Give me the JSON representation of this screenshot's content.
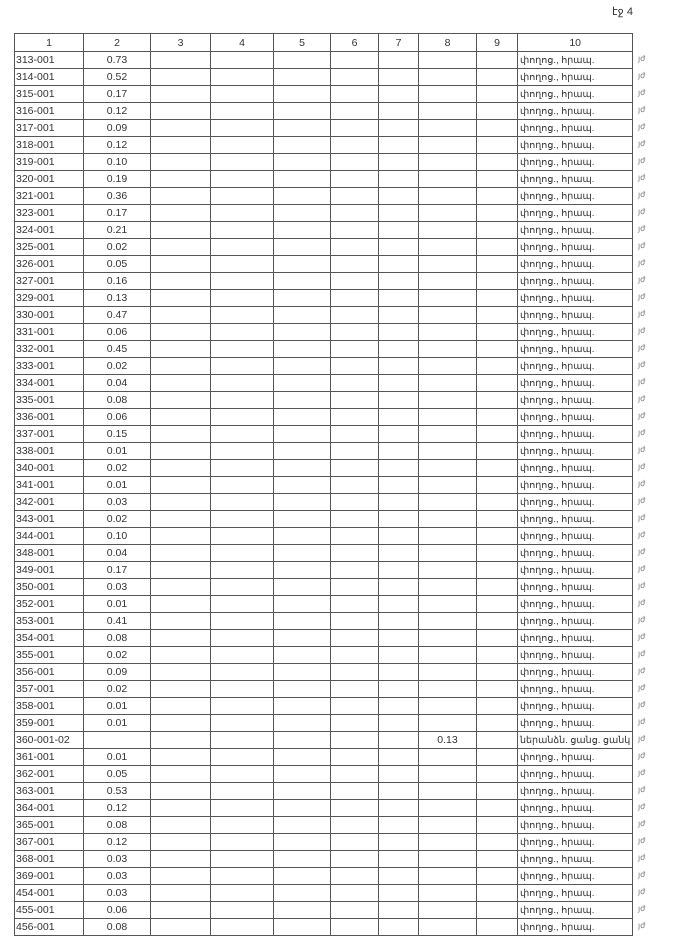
{
  "page_label": "էջ 4",
  "columns": [
    "1",
    "2",
    "3",
    "4",
    "5",
    "6",
    "7",
    "8",
    "9",
    "10"
  ],
  "side_mark": "յժ",
  "rows": [
    {
      "c1": "313-001",
      "c2": "0.73",
      "c8": "",
      "c10": "փողոց., հրապ."
    },
    {
      "c1": "314-001",
      "c2": "0.52",
      "c8": "",
      "c10": "փողոց., հրապ."
    },
    {
      "c1": "315-001",
      "c2": "0.17",
      "c8": "",
      "c10": "փողոց., հրապ."
    },
    {
      "c1": "316-001",
      "c2": "0.12",
      "c8": "",
      "c10": "փողոց., հրապ."
    },
    {
      "c1": "317-001",
      "c2": "0.09",
      "c8": "",
      "c10": "փողոց., հրապ."
    },
    {
      "c1": "318-001",
      "c2": "0.12",
      "c8": "",
      "c10": "փողոց., հրապ."
    },
    {
      "c1": "319-001",
      "c2": "0.10",
      "c8": "",
      "c10": "փողոց., հրապ."
    },
    {
      "c1": "320-001",
      "c2": "0.19",
      "c8": "",
      "c10": "փողոց., հրապ."
    },
    {
      "c1": "321-001",
      "c2": "0.36",
      "c8": "",
      "c10": "փողոց., հրապ."
    },
    {
      "c1": "323-001",
      "c2": "0.17",
      "c8": "",
      "c10": "փողոց., հրապ."
    },
    {
      "c1": "324-001",
      "c2": "0.21",
      "c8": "",
      "c10": "փողոց., հրապ."
    },
    {
      "c1": "325-001",
      "c2": "0.02",
      "c8": "",
      "c10": "փողոց., հրապ."
    },
    {
      "c1": "326-001",
      "c2": "0.05",
      "c8": "",
      "c10": "փողոց., հրապ."
    },
    {
      "c1": "327-001",
      "c2": "0.16",
      "c8": "",
      "c10": "փողոց., հրապ."
    },
    {
      "c1": "329-001",
      "c2": "0.13",
      "c8": "",
      "c10": "փողոց., հրապ."
    },
    {
      "c1": "330-001",
      "c2": "0.47",
      "c8": "",
      "c10": "փողոց., հրապ."
    },
    {
      "c1": "331-001",
      "c2": "0.06",
      "c8": "",
      "c10": "փողոց., հրապ."
    },
    {
      "c1": "332-001",
      "c2": "0.45",
      "c8": "",
      "c10": "փողոց., հրապ."
    },
    {
      "c1": "333-001",
      "c2": "0.02",
      "c8": "",
      "c10": "փողոց., հրապ."
    },
    {
      "c1": "334-001",
      "c2": "0.04",
      "c8": "",
      "c10": "փողոց., հրապ."
    },
    {
      "c1": "335-001",
      "c2": "0.08",
      "c8": "",
      "c10": "փողոց., հրապ."
    },
    {
      "c1": "336-001",
      "c2": "0.06",
      "c8": "",
      "c10": "փողոց., հրապ."
    },
    {
      "c1": "337-001",
      "c2": "0.15",
      "c8": "",
      "c10": "փողոց., հրապ."
    },
    {
      "c1": "338-001",
      "c2": "0.01",
      "c8": "",
      "c10": "փողոց., հրապ."
    },
    {
      "c1": "340-001",
      "c2": "0.02",
      "c8": "",
      "c10": "փողոց., հրապ."
    },
    {
      "c1": "341-001",
      "c2": "0.01",
      "c8": "",
      "c10": "փողոց., հրապ."
    },
    {
      "c1": "342-001",
      "c2": "0.03",
      "c8": "",
      "c10": "փողոց., հրապ."
    },
    {
      "c1": "343-001",
      "c2": "0.02",
      "c8": "",
      "c10": "փողոց., հրապ."
    },
    {
      "c1": "344-001",
      "c2": "0.10",
      "c8": "",
      "c10": "փողոց., հրապ."
    },
    {
      "c1": "348-001",
      "c2": "0.04",
      "c8": "",
      "c10": "փողոց., հրապ."
    },
    {
      "c1": "349-001",
      "c2": "0.17",
      "c8": "",
      "c10": "փողոց., հրապ."
    },
    {
      "c1": "350-001",
      "c2": "0.03",
      "c8": "",
      "c10": "փողոց., հրապ."
    },
    {
      "c1": "352-001",
      "c2": "0.01",
      "c8": "",
      "c10": "փողոց., հրապ."
    },
    {
      "c1": "353-001",
      "c2": "0.41",
      "c8": "",
      "c10": "փողոց., հրապ."
    },
    {
      "c1": "354-001",
      "c2": "0.08",
      "c8": "",
      "c10": "փողոց., հրապ."
    },
    {
      "c1": "355-001",
      "c2": "0.02",
      "c8": "",
      "c10": "փողոց., հրապ."
    },
    {
      "c1": "356-001",
      "c2": "0.09",
      "c8": "",
      "c10": "փողոց., հրապ."
    },
    {
      "c1": "357-001",
      "c2": "0.02",
      "c8": "",
      "c10": "փողոց., հրապ."
    },
    {
      "c1": "358-001",
      "c2": "0.01",
      "c8": "",
      "c10": "փողոց., հրապ."
    },
    {
      "c1": "359-001",
      "c2": "0.01",
      "c8": "",
      "c10": "փողոց., հրապ."
    },
    {
      "c1": "360-001-02",
      "c2": "",
      "c8": "0.13",
      "c10": "ներանձն. ցանց. ցանկ"
    },
    {
      "c1": "361-001",
      "c2": "0.01",
      "c8": "",
      "c10": "փողոց., հրապ."
    },
    {
      "c1": "362-001",
      "c2": "0.05",
      "c8": "",
      "c10": "փողոց., հրապ."
    },
    {
      "c1": "363-001",
      "c2": "0.53",
      "c8": "",
      "c10": "փողոց., հրապ."
    },
    {
      "c1": "364-001",
      "c2": "0.12",
      "c8": "",
      "c10": "փողոց., հրապ."
    },
    {
      "c1": "365-001",
      "c2": "0.08",
      "c8": "",
      "c10": "փողոց., հրապ."
    },
    {
      "c1": "367-001",
      "c2": "0.12",
      "c8": "",
      "c10": "փողոց., հրապ."
    },
    {
      "c1": "368-001",
      "c2": "0.03",
      "c8": "",
      "c10": "փողոց., հրապ."
    },
    {
      "c1": "369-001",
      "c2": "0.03",
      "c8": "",
      "c10": "փողոց., հրապ."
    },
    {
      "c1": "454-001",
      "c2": "0.03",
      "c8": "",
      "c10": "փողոց., հրապ."
    },
    {
      "c1": "455-001",
      "c2": "0.06",
      "c8": "",
      "c10": "փողոց., հրապ."
    },
    {
      "c1": "456-001",
      "c2": "0.08",
      "c8": "",
      "c10": "փողոց., հրապ."
    }
  ]
}
